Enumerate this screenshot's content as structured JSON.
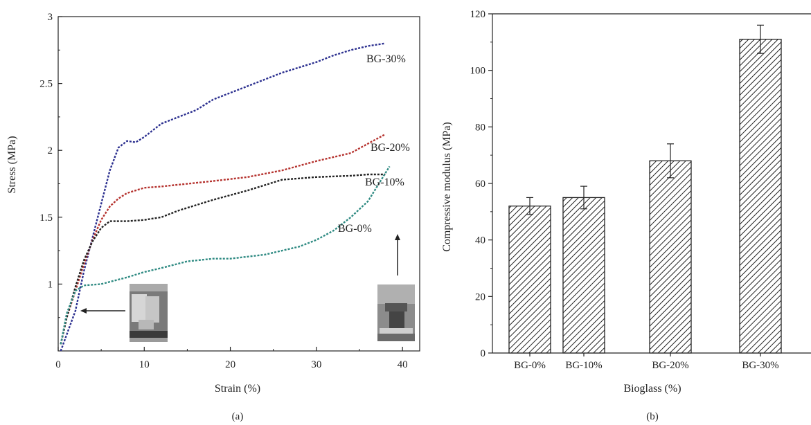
{
  "chart_data": [
    {
      "type": "line",
      "panel_label": "(a)",
      "xlabel": "Strain (%)",
      "ylabel": "Stress (MPa)",
      "xlim": [
        0,
        42
      ],
      "ylim": [
        0.5,
        3
      ],
      "xticks": [
        0,
        10,
        20,
        30,
        40
      ],
      "yticks": [
        1,
        1.5,
        2,
        2.5,
        3
      ],
      "grid": false,
      "series": [
        {
          "name": "BG-30%",
          "color": "#2b2f8f",
          "x": [
            0.3,
            2,
            3,
            4,
            5,
            6,
            7,
            8,
            9,
            10,
            11,
            12,
            14,
            16,
            18,
            20,
            22,
            24,
            26,
            28,
            30,
            32,
            34,
            36,
            38
          ],
          "y": [
            0.5,
            0.8,
            1.1,
            1.35,
            1.6,
            1.85,
            2.02,
            2.07,
            2.06,
            2.1,
            2.15,
            2.2,
            2.25,
            2.3,
            2.38,
            2.43,
            2.48,
            2.53,
            2.58,
            2.62,
            2.66,
            2.71,
            2.75,
            2.78,
            2.8
          ]
        },
        {
          "name": "BG-20%",
          "color": "#b5322e",
          "x": [
            0.3,
            1,
            2,
            3,
            4,
            5,
            6,
            7,
            8,
            10,
            12,
            15,
            18,
            22,
            26,
            30,
            34,
            36,
            38
          ],
          "y": [
            0.55,
            0.75,
            0.95,
            1.15,
            1.33,
            1.48,
            1.58,
            1.64,
            1.68,
            1.72,
            1.73,
            1.75,
            1.77,
            1.8,
            1.85,
            1.92,
            1.98,
            2.05,
            2.12
          ]
        },
        {
          "name": "BG-10%",
          "color": "#222222",
          "x": [
            0.3,
            1,
            2,
            3,
            4,
            5,
            6,
            7,
            8,
            10,
            12,
            14,
            18,
            22,
            26,
            30,
            34,
            36,
            38
          ],
          "y": [
            0.55,
            0.75,
            0.98,
            1.18,
            1.32,
            1.42,
            1.47,
            1.47,
            1.47,
            1.48,
            1.5,
            1.55,
            1.63,
            1.7,
            1.78,
            1.8,
            1.81,
            1.82,
            1.82
          ]
        },
        {
          "name": "BG-0%",
          "color": "#2e8a82",
          "x": [
            0.3,
            1,
            2,
            3,
            5,
            8,
            10,
            12,
            15,
            18,
            20,
            24,
            28,
            30,
            32,
            34,
            36,
            38.5
          ],
          "y": [
            0.55,
            0.78,
            0.95,
            0.99,
            1.0,
            1.05,
            1.09,
            1.12,
            1.17,
            1.19,
            1.19,
            1.22,
            1.28,
            1.33,
            1.4,
            1.5,
            1.62,
            1.88
          ]
        }
      ],
      "insets": [
        "sample-before-compression",
        "sample-after-compression"
      ]
    },
    {
      "type": "bar",
      "panel_label": "(b)",
      "xlabel": "Bioglass (%)",
      "ylabel": "Compressive modulus (MPa)",
      "ylim": [
        0,
        120
      ],
      "yticks": [
        0,
        20,
        40,
        60,
        80,
        100,
        120
      ],
      "categories": [
        "BG-0%",
        "BG-10%",
        "BG-20%",
        "BG-30%"
      ],
      "values": [
        52,
        55,
        68,
        111
      ],
      "errors": [
        3,
        4,
        6,
        5
      ],
      "bar_fill": "hatched",
      "grid": false
    }
  ]
}
